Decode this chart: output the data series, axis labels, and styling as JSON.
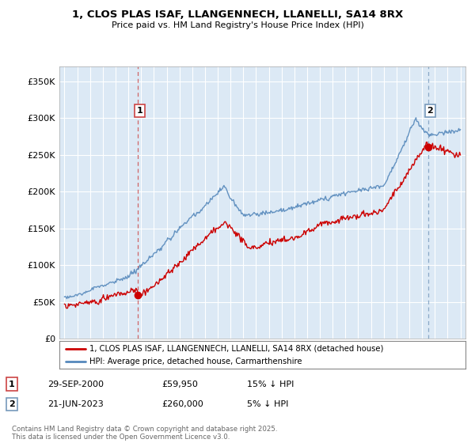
{
  "title_line1": "1, CLOS PLAS ISAF, LLANGENNECH, LLANELLI, SA14 8RX",
  "title_line2": "Price paid vs. HM Land Registry's House Price Index (HPI)",
  "background_color": "#ffffff",
  "plot_bg_color": "#dce9f5",
  "grid_color": "#ffffff",
  "red_line_color": "#cc0000",
  "blue_line_color": "#5588bb",
  "marker1_date_x": 2000.747,
  "marker1_price": 59950,
  "marker2_date_x": 2023.472,
  "marker2_price": 260000,
  "vline1_color": "#cc4444",
  "vline2_color": "#7799bb",
  "xmin": 1994.6,
  "xmax": 2026.4,
  "ymin": 0,
  "ymax": 370000,
  "yticks": [
    0,
    50000,
    100000,
    150000,
    200000,
    250000,
    300000,
    350000
  ],
  "ytick_labels": [
    "£0",
    "£50K",
    "£100K",
    "£150K",
    "£200K",
    "£250K",
    "£300K",
    "£350K"
  ],
  "legend_label_red": "1, CLOS PLAS ISAF, LLANGENNECH, LLANELLI, SA14 8RX (detached house)",
  "legend_label_blue": "HPI: Average price, detached house, Carmarthenshire",
  "table_row1": [
    "1",
    "29-SEP-2000",
    "£59,950",
    "15% ↓ HPI"
  ],
  "table_row2": [
    "2",
    "21-JUN-2023",
    "£260,000",
    "5% ↓ HPI"
  ],
  "footer_text": "Contains HM Land Registry data © Crown copyright and database right 2025.\nThis data is licensed under the Open Government Licence v3.0.",
  "marker1_label": "1",
  "marker2_label": "2"
}
